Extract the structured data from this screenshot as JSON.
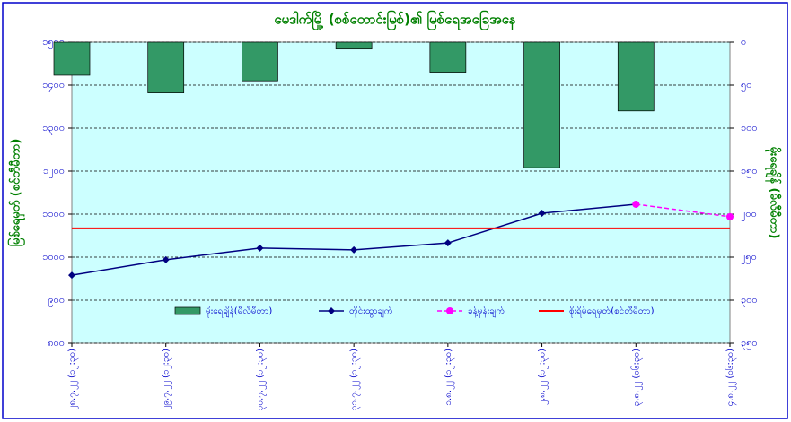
{
  "chart_data": {
    "type": "bar_line",
    "title": "မေဒါက်မြို့ (စစ်တောင်းမြစ်)၏ မြစ်ရေအခြေအနေ",
    "ylabel": "မြစ်ရေမှတ် (စင်တီမီတာ)",
    "y2label": "မိုးရေချိန် (မီလီမီတာ)",
    "categories": [
      "၂၈.၇.၂၂ (၁၂:၃၀)",
      "၂၉.၇.၂၂ (၁၂:၃၀)",
      "၃၀.၇.၂၂ (၁၂:၃၀)",
      "၃၁.၇.၂၂ (၁၂:၃၀)",
      "၁.၈.၂၂ (၁၂:၃၀)",
      "၂.၈.၂၂ (၁၂:၃၀)",
      "၃.၈.၂၂ (၀၆:၃၀)",
      "၄.၈.၂၂ (၀၆:၃၀)"
    ],
    "series": [
      {
        "name": "မိုးရေချိန်(မီလီမီတာ)",
        "kind": "bar",
        "axis": "y2",
        "color": "#339966",
        "values": [
          38.5,
          59,
          45,
          8,
          35,
          146,
          80,
          null
        ]
      },
      {
        "name": "တိုင်းထွာချက်",
        "kind": "line",
        "marker": "diamond",
        "color": "#000080",
        "values": [
          958,
          994,
          1021,
          1017,
          1033,
          1102,
          1123,
          null
        ]
      },
      {
        "name": "ခန့်မှန်းချက်",
        "kind": "line",
        "marker": "circle",
        "dashed": true,
        "color": "#ff00ff",
        "values": [
          null,
          null,
          null,
          null,
          null,
          null,
          1123,
          1094
        ]
      }
    ],
    "reference_line": {
      "name": "စိုးရိမ်ရေမှတ်(စင်တီမီတာ)",
      "value": 1067,
      "color": "#ff0000"
    },
    "ylim": [
      800,
      1500
    ],
    "yticks": [
      {
        "value": 800,
        "label": "၈၀၀"
      },
      {
        "value": 900,
        "label": "၉၀၀"
      },
      {
        "value": 1000,
        "label": "၁၀၀၀"
      },
      {
        "value": 1100,
        "label": "၁၁၀၀"
      },
      {
        "value": 1200,
        "label": "၁၂၀၀"
      },
      {
        "value": 1300,
        "label": "၁၃၀၀"
      },
      {
        "value": 1400,
        "label": "၁၄၀၀"
      },
      {
        "value": 1500,
        "label": "၁၅၀၀"
      }
    ],
    "y2lim": [
      350,
      0
    ],
    "y2ticks": [
      {
        "value": 350,
        "label": "၃၅၀"
      },
      {
        "value": 300,
        "label": "၃၀၀"
      },
      {
        "value": 250,
        "label": "၂၅၀"
      },
      {
        "value": 200,
        "label": "၂၀၀"
      },
      {
        "value": 150,
        "label": "၁၅၀"
      },
      {
        "value": 100,
        "label": "၁၀၀"
      },
      {
        "value": 50,
        "label": "၅၀"
      },
      {
        "value": 0,
        "label": "၀"
      }
    ],
    "grid": true,
    "background": "#ccffff"
  }
}
